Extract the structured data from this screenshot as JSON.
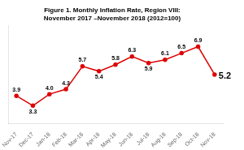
{
  "chart_data": {
    "type": "line",
    "title": "Figure 1. Monthly Inflation Rate, Region VIII:\nNovember 2017 –November 2018 (2012=100)",
    "categories": [
      "Nov-17",
      "Dec-17",
      "Jan-18",
      "Feb-18",
      "Mar-18",
      "Apr-18",
      "May-18",
      "Jun-18",
      "Jul-18",
      "Aug-18",
      "Sep-18",
      "Oct-18",
      "Nov-18"
    ],
    "values": [
      3.9,
      3.3,
      4.0,
      4.3,
      5.7,
      5.4,
      5.8,
      6.3,
      5.9,
      6.1,
      6.5,
      6.9,
      5.2
    ],
    "value_labels": [
      "3.9",
      "3.3",
      "4.0",
      "4.3",
      "5.7",
      "5.4",
      "5.8",
      "6.3",
      "5.9",
      "6.1",
      "6.5",
      "6.9",
      "5.2"
    ],
    "color": "#dd0000",
    "ylim": [
      2.2,
      8.2
    ],
    "grid": false,
    "data_labels": true,
    "tick_labels": "x"
  }
}
